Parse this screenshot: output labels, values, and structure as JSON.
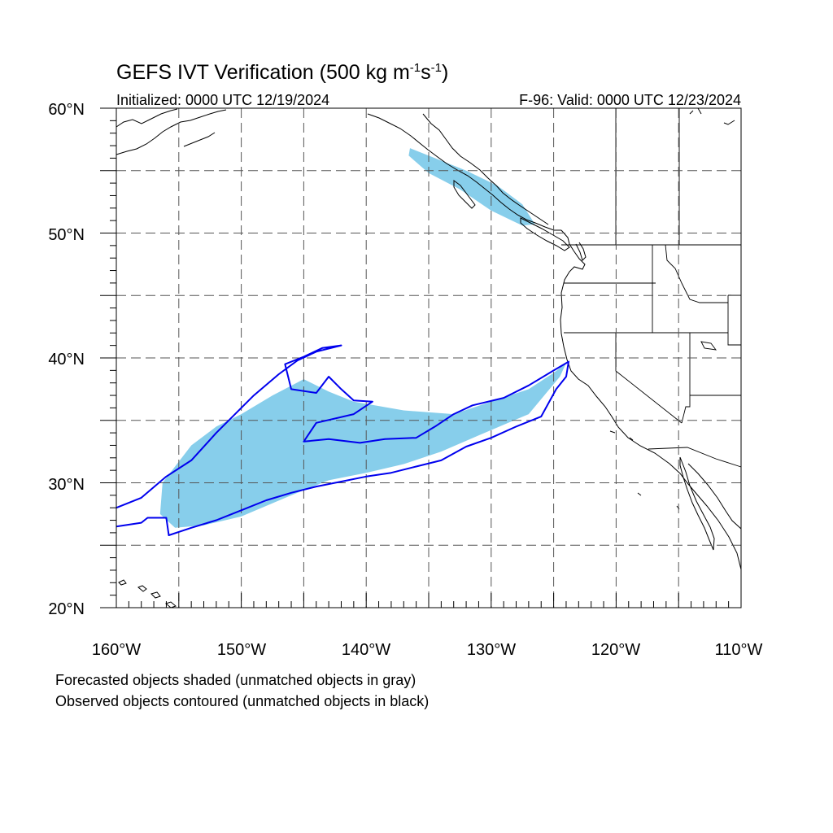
{
  "header": {
    "title": "GEFS IVT Verification (500 kg m",
    "title_exp1": "-1",
    "title_mid": "s",
    "title_exp2": "-1",
    "title_end": ")",
    "initialized": "Initialized: 0000 UTC 12/19/2024",
    "valid": "F-96: Valid: 0000 UTC 12/23/2024"
  },
  "axes": {
    "lon_range": [
      -160,
      -110
    ],
    "lat_range": [
      20,
      60
    ],
    "lat_labels": [
      "60°N",
      "50°N",
      "40°N",
      "30°N",
      "20°N"
    ],
    "lon_labels": [
      "160°W",
      "150°W",
      "140°W",
      "130°W",
      "120°W",
      "110°W"
    ],
    "grid": "dashed every 5 degrees"
  },
  "legend": {
    "line1": "Forecasted objects shaded (unmatched objects in gray)",
    "line2": "Observed objects contoured (unmatched objects in black)"
  },
  "colors": {
    "forecast_fill": "#87ceeb",
    "observed_contour": "#0000ee",
    "coastline": "#000000",
    "grid": "#555555"
  },
  "objects": {
    "forecast": [
      {
        "lonlat": [
          [
            -156.5,
            27.5
          ],
          [
            -156.3,
            30
          ],
          [
            -154,
            33
          ],
          [
            -152,
            34.5
          ],
          [
            -150,
            35.5
          ],
          [
            -147.5,
            37
          ],
          [
            -145,
            38.3
          ],
          [
            -143,
            37.3
          ],
          [
            -141,
            36.5
          ],
          [
            -137,
            35.8
          ],
          [
            -133,
            35.5
          ],
          [
            -130,
            36.5
          ],
          [
            -127,
            37.5
          ],
          [
            -125,
            38.8
          ],
          [
            -124,
            39.6
          ],
          [
            -124.5,
            38.5
          ],
          [
            -127,
            35.5
          ],
          [
            -131,
            33.8
          ],
          [
            -134,
            32.5
          ],
          [
            -137,
            31.5
          ],
          [
            -140,
            30.8
          ],
          [
            -143,
            30.2
          ],
          [
            -146,
            29
          ],
          [
            -150,
            27.3
          ],
          [
            -153,
            26.6
          ],
          [
            -155.3,
            26.4
          ],
          [
            -156.5,
            27.5
          ]
        ]
      },
      {
        "lonlat": [
          [
            -136.5,
            56.8
          ],
          [
            -134.5,
            56
          ],
          [
            -132,
            55
          ],
          [
            -129.5,
            53.8
          ],
          [
            -127.5,
            52.3
          ],
          [
            -126.5,
            50.7
          ],
          [
            -127.5,
            50.6
          ],
          [
            -130,
            51.8
          ],
          [
            -132.5,
            53.5
          ],
          [
            -135,
            54.8
          ],
          [
            -136.6,
            56.2
          ],
          [
            -136.5,
            56.8
          ]
        ]
      }
    ],
    "observed": [
      {
        "lonlat": [
          [
            -160,
            28
          ],
          [
            -158,
            28.8
          ],
          [
            -156,
            30.5
          ],
          [
            -154,
            31.8
          ],
          [
            -152,
            34
          ],
          [
            -151,
            35
          ],
          [
            -149,
            37
          ],
          [
            -147,
            38.7
          ],
          [
            -145.5,
            39.8
          ],
          [
            -144,
            40.5
          ],
          [
            -142,
            41
          ],
          [
            -143.5,
            40.8
          ],
          [
            -145,
            40.1
          ],
          [
            -146.5,
            39.5
          ],
          [
            -146,
            37.5
          ],
          [
            -144,
            37.2
          ],
          [
            -143,
            38.5
          ],
          [
            -142,
            37.5
          ],
          [
            -141,
            36.6
          ],
          [
            -139.5,
            36.5
          ],
          [
            -141,
            35.5
          ],
          [
            -144,
            34.8
          ],
          [
            -145,
            33.3
          ],
          [
            -143,
            33.5
          ],
          [
            -140.5,
            33.2
          ],
          [
            -138.5,
            33.5
          ],
          [
            -136,
            33.6
          ],
          [
            -134.5,
            34.5
          ],
          [
            -133,
            35.5
          ],
          [
            -131.5,
            36.2
          ],
          [
            -129,
            36.8
          ],
          [
            -127,
            37.8
          ],
          [
            -125,
            39
          ],
          [
            -123.8,
            39.7
          ],
          [
            -124,
            38.5
          ],
          [
            -124.8,
            37.5
          ],
          [
            -126,
            35.3
          ],
          [
            -128,
            34.5
          ],
          [
            -130,
            33.6
          ],
          [
            -132,
            32.9
          ],
          [
            -134,
            31.8
          ],
          [
            -136,
            31.3
          ],
          [
            -138,
            30.8
          ],
          [
            -140,
            30.5
          ],
          [
            -142,
            30.1
          ],
          [
            -144,
            29.7
          ],
          [
            -146,
            29.2
          ],
          [
            -148,
            28.6
          ],
          [
            -150,
            27.8
          ],
          [
            -152,
            27
          ],
          [
            -154,
            26.4
          ],
          [
            -155.8,
            25.8
          ],
          [
            -156,
            27.2
          ],
          [
            -157.5,
            27.2
          ],
          [
            -158,
            26.8
          ],
          [
            -160,
            26.5
          ]
        ]
      }
    ]
  }
}
